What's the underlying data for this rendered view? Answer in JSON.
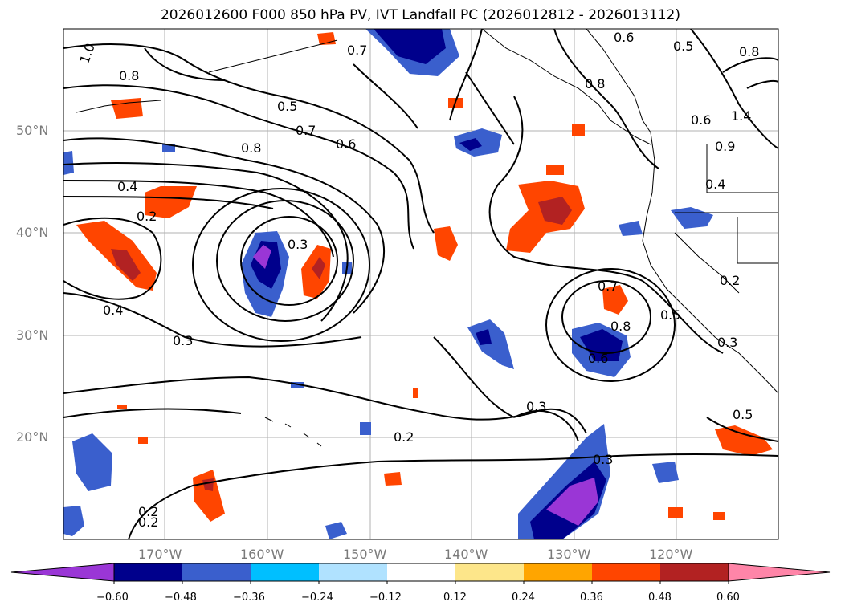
{
  "title": "2026012600 F000 850 hPa PV, IVT Landfall PC (2026012812 - 2026013112)",
  "lat_labels": [
    "50°N",
    "40°N",
    "30°N",
    "20°N"
  ],
  "lon_labels": [
    "170°W",
    "160°W",
    "150°W",
    "140°W",
    "130°W",
    "120°W"
  ],
  "contour_labels": [
    "1.0",
    "0.8",
    "0.7",
    "0.5",
    "0.7",
    "0.6",
    "0.8",
    "0.4",
    "0.2",
    "0.3",
    "0.4",
    "0.3",
    "0.2",
    "0.3",
    "0.2",
    "0.2",
    "0.7",
    "0.8",
    "0.6",
    "0.5",
    "0.3",
    "0.5",
    "0.3",
    "0.8",
    "0.6",
    "1.4",
    "0.4",
    "0.2",
    "0.6",
    "0.5",
    "0.8",
    "0.9"
  ],
  "colorbar": {
    "ticks": [
      "−0.60",
      "−0.48",
      "−0.36",
      "−0.24",
      "−0.12",
      "0.12",
      "0.24",
      "0.36",
      "0.48",
      "0.60"
    ],
    "colors": [
      "#9a36d6",
      "#00008c",
      "#3a5fcd",
      "#00bfff",
      "#b0e2ff",
      "#ffffff",
      "#fde68a",
      "#ffa500",
      "#ff4500",
      "#b22222",
      "#ff85a8"
    ]
  }
}
